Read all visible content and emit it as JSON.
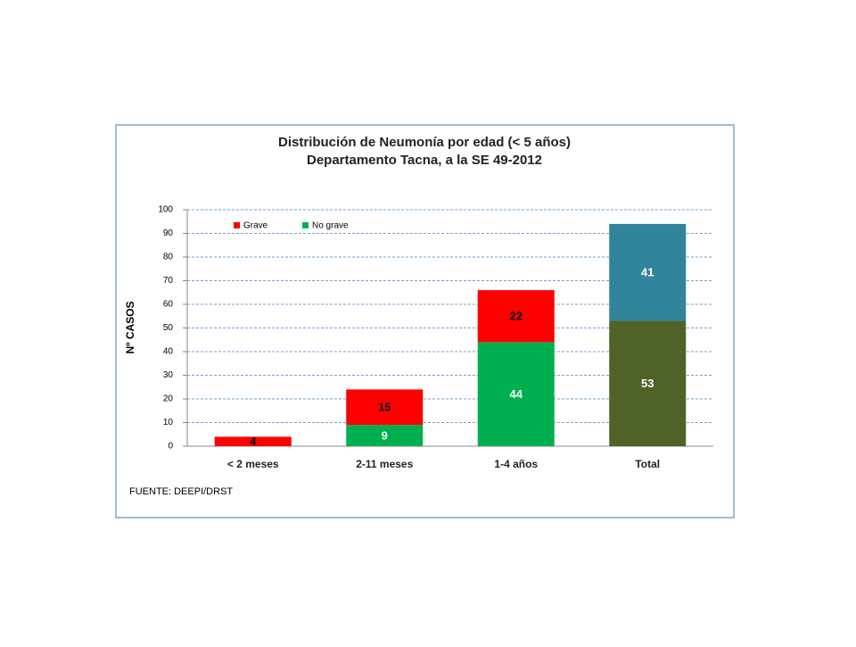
{
  "chart_data": {
    "type": "stacked_bar",
    "title": [
      "Distribución  de Neumonía por edad (< 5 años)",
      "Departamento Tacna, a la SE  49-2012"
    ],
    "y_label": "Nº CASOS",
    "source": "FUENTE: DEEPI/DRST",
    "categories": [
      "< 2 meses",
      "2-11 meses",
      "1-4 años",
      "Total"
    ],
    "series": [
      {
        "name": "No grave",
        "color": "#00b050",
        "colors": [
          "#00b050",
          "#00b050",
          "#00b050",
          "#4f6228"
        ],
        "label_colors": [
          "#ffffff",
          "#ffffff",
          "#ffffff",
          "#ffffff"
        ],
        "values": [
          0,
          9,
          44,
          53
        ]
      },
      {
        "name": "Grave",
        "color": "#ff0000",
        "colors": [
          "#ff0000",
          "#ff0000",
          "#ff0000",
          "#31849b"
        ],
        "label_colors": [
          "#000000",
          "#000000",
          "#000000",
          "#ffffff"
        ],
        "values": [
          4,
          15,
          22,
          41
        ]
      }
    ],
    "ylim": [
      0,
      100
    ],
    "yticks": [
      0,
      10,
      20,
      30,
      40,
      50,
      60,
      70,
      80,
      90,
      100
    ],
    "grid": true,
    "legend": "top-left"
  }
}
